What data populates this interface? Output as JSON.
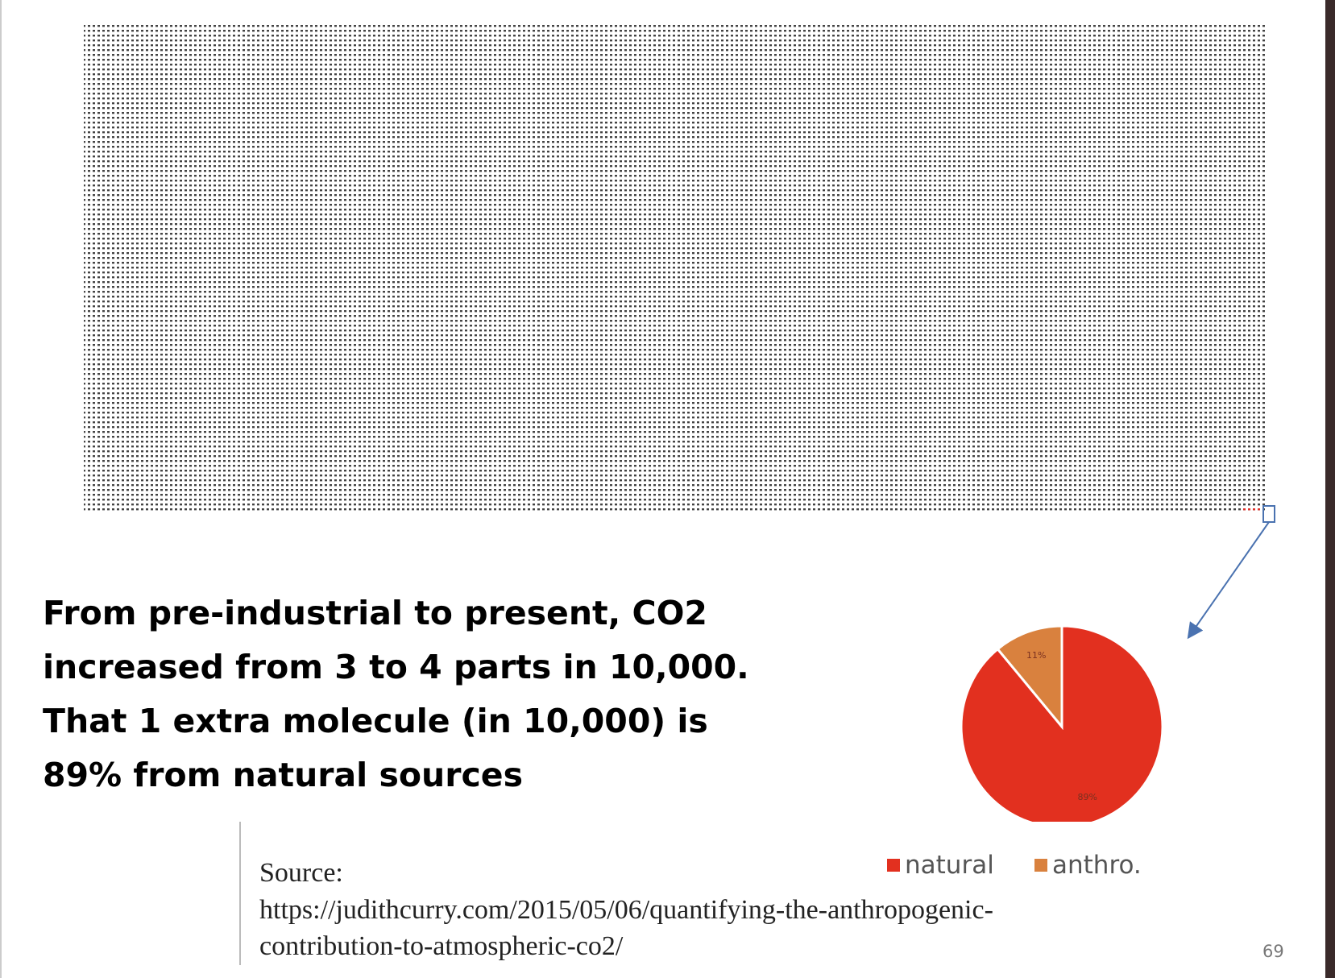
{
  "chart_data": {
    "type": "pie",
    "categories": [
      "natural",
      "anthro."
    ],
    "values": [
      89,
      11
    ],
    "value_labels": [
      "89%",
      "11%"
    ],
    "colors": [
      "#e2301f",
      "#d9813e"
    ]
  },
  "headline": [
    "From pre-industrial to present, CO2",
    "increased from 3 to 4 parts in 10,000.",
    "That 1 extra molecule (in 10,000) is",
    "89% from natural sources"
  ],
  "source": {
    "label": "Source:",
    "url": [
      "https://judithcurry.com/2015/05/06/quantifying-the-anthropogenic-",
      "contribution-to-atmospheric-co2/"
    ]
  },
  "page_number": "69"
}
